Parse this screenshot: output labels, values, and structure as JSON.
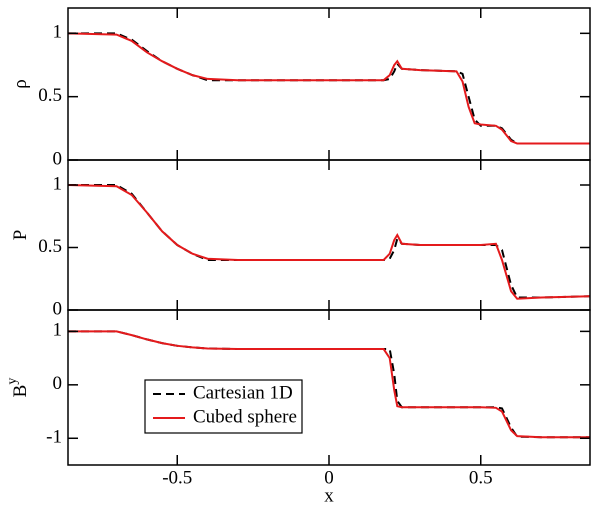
{
  "chart_data": [
    {
      "type": "line",
      "ylabel": "ρ",
      "xlim": [
        -0.86,
        0.86
      ],
      "xticks": [
        -0.5,
        0,
        0.5
      ],
      "ylim": [
        0,
        1.2
      ],
      "yticks": [
        0,
        0.5,
        1
      ],
      "x": [
        -0.86,
        -0.7,
        -0.65,
        -0.6,
        -0.55,
        -0.5,
        -0.45,
        -0.4,
        -0.3,
        0,
        0.18,
        0.2,
        0.215,
        0.225,
        0.24,
        0.3,
        0.42,
        0.44,
        0.46,
        0.48,
        0.5,
        0.55,
        0.57,
        0.6,
        0.62,
        0.7,
        0.86
      ],
      "series": [
        {
          "color": "#000000",
          "dash": true,
          "values": [
            1,
            1,
            0.95,
            0.86,
            0.78,
            0.72,
            0.67,
            0.63,
            0.63,
            0.63,
            0.63,
            0.64,
            0.7,
            0.76,
            0.72,
            0.71,
            0.7,
            0.68,
            0.5,
            0.32,
            0.27,
            0.27,
            0.25,
            0.16,
            0.13,
            0.13,
            0.13
          ]
        },
        {
          "color": "#e41a1c",
          "dash": false,
          "values": [
            1,
            0.99,
            0.94,
            0.85,
            0.78,
            0.72,
            0.67,
            0.64,
            0.63,
            0.63,
            0.63,
            0.67,
            0.75,
            0.78,
            0.72,
            0.71,
            0.7,
            0.62,
            0.42,
            0.29,
            0.28,
            0.27,
            0.24,
            0.15,
            0.13,
            0.13,
            0.13
          ]
        }
      ]
    },
    {
      "type": "line",
      "ylabel": "P",
      "xlim": [
        -0.86,
        0.86
      ],
      "xticks": [
        -0.5,
        0,
        0.5
      ],
      "ylim": [
        0,
        1.2
      ],
      "yticks": [
        0,
        0.5,
        1
      ],
      "x": [
        -0.86,
        -0.7,
        -0.65,
        -0.6,
        -0.55,
        -0.5,
        -0.45,
        -0.4,
        -0.3,
        0,
        0.18,
        0.2,
        0.215,
        0.225,
        0.24,
        0.3,
        0.42,
        0.44,
        0.46,
        0.48,
        0.5,
        0.55,
        0.57,
        0.6,
        0.62,
        0.7,
        0.86
      ],
      "series": [
        {
          "color": "#000000",
          "dash": true,
          "values": [
            1,
            1,
            0.93,
            0.78,
            0.63,
            0.52,
            0.45,
            0.4,
            0.4,
            0.4,
            0.4,
            0.41,
            0.48,
            0.57,
            0.53,
            0.52,
            0.52,
            0.52,
            0.52,
            0.52,
            0.52,
            0.52,
            0.48,
            0.2,
            0.1,
            0.1,
            0.11
          ]
        },
        {
          "color": "#e41a1c",
          "dash": false,
          "values": [
            1,
            0.99,
            0.92,
            0.78,
            0.63,
            0.52,
            0.45,
            0.41,
            0.4,
            0.4,
            0.4,
            0.45,
            0.56,
            0.6,
            0.53,
            0.52,
            0.52,
            0.52,
            0.52,
            0.52,
            0.52,
            0.53,
            0.4,
            0.15,
            0.09,
            0.1,
            0.11
          ]
        }
      ]
    },
    {
      "type": "line",
      "ylabel": "B",
      "ylabel_sup": "y",
      "xlabel": "x",
      "legend": "lower left",
      "xlim": [
        -0.86,
        0.86
      ],
      "xticks": [
        -0.5,
        0,
        0.5
      ],
      "ylim": [
        -1.5,
        1.4
      ],
      "yticks": [
        -1,
        0,
        1
      ],
      "x": [
        -0.86,
        -0.7,
        -0.65,
        -0.6,
        -0.55,
        -0.5,
        -0.45,
        -0.4,
        -0.3,
        0,
        0.18,
        0.2,
        0.215,
        0.225,
        0.24,
        0.3,
        0.42,
        0.44,
        0.46,
        0.48,
        0.5,
        0.55,
        0.57,
        0.6,
        0.62,
        0.7,
        0.86
      ],
      "series": [
        {
          "name": "Cartesian 1D",
          "color": "#000000",
          "dash": true,
          "values": [
            1,
            1,
            0.93,
            0.85,
            0.78,
            0.73,
            0.7,
            0.68,
            0.67,
            0.67,
            0.67,
            0.67,
            0.2,
            -0.3,
            -0.42,
            -0.42,
            -0.42,
            -0.42,
            -0.42,
            -0.42,
            -0.42,
            -0.42,
            -0.44,
            -0.8,
            -0.97,
            -0.98,
            -0.98
          ]
        },
        {
          "name": "Cubed sphere",
          "color": "#e41a1c",
          "dash": false,
          "values": [
            1,
            1,
            0.93,
            0.85,
            0.78,
            0.73,
            0.7,
            0.68,
            0.67,
            0.67,
            0.67,
            0.5,
            -0.1,
            -0.4,
            -0.42,
            -0.42,
            -0.42,
            -0.42,
            -0.42,
            -0.42,
            -0.42,
            -0.43,
            -0.5,
            -0.85,
            -0.96,
            -0.98,
            -0.98
          ]
        }
      ]
    }
  ]
}
